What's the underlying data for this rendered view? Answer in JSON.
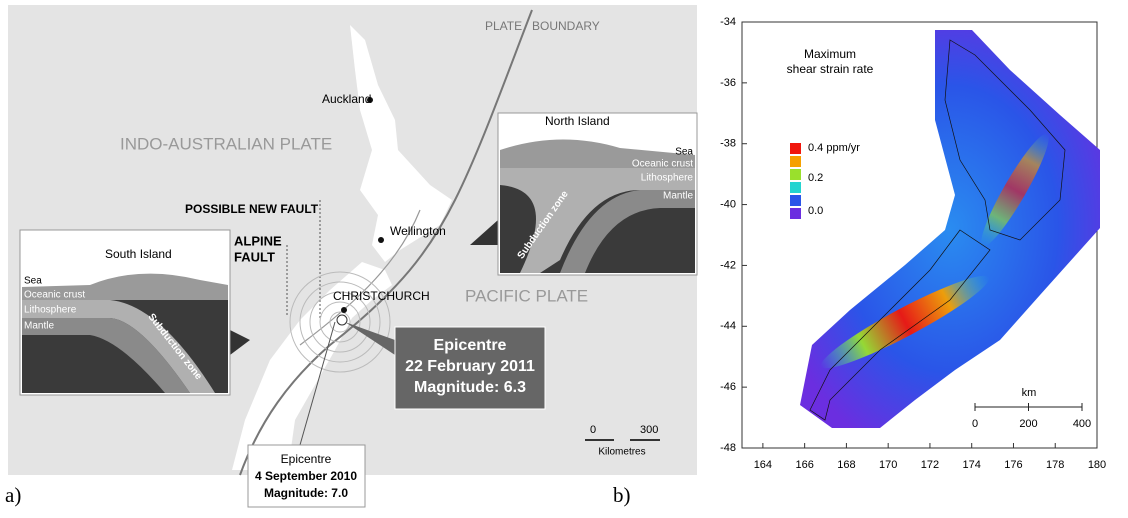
{
  "panel_a": {
    "label": "a)",
    "plate_boundary": [
      "PLATE",
      "BOUNDARY"
    ],
    "plates": [
      "INDO-AUSTRALIAN PLATE",
      "PACIFIC PLATE"
    ],
    "cities": [
      "Auckland",
      "Wellington",
      "CHRISTCHURCH"
    ],
    "possible_fault": "POSSIBLE NEW FAULT",
    "alpine_fault": [
      "ALPINE",
      "FAULT"
    ],
    "north_inset": {
      "title": "North Island",
      "layers": [
        "Sea",
        "Oceanic crust",
        "Lithosphere",
        "Mantle"
      ],
      "zone": "Subduction zone"
    },
    "south_inset": {
      "title": "South Island",
      "layers": [
        "Sea",
        "Oceanic crust",
        "Lithosphere",
        "Mantle"
      ],
      "zone": "Subduction zone"
    },
    "epicentre_2011": [
      "Epicentre",
      "22 February 2011",
      "Magnitude: 6.3"
    ],
    "epicentre_2010": [
      "Epicentre",
      "4 September 2010",
      "Magnitude: 7.0"
    ],
    "scale": {
      "ticks": [
        0,
        300
      ],
      "unit": "Kilometres"
    }
  },
  "panel_b": {
    "label": "b)",
    "title": [
      "Maximum",
      "shear strain rate"
    ],
    "legend": [
      "0.4 ppm/yr",
      "0.2",
      "0.0"
    ],
    "xlim": [
      163,
      180
    ],
    "xticks": [
      164,
      166,
      168,
      170,
      172,
      174,
      176,
      178,
      180
    ],
    "ylim": [
      -48,
      -34
    ],
    "yticks": [
      -34,
      -36,
      -38,
      -40,
      -42,
      -44,
      -46,
      -48
    ],
    "scale_bar": {
      "unit": "km",
      "ticks": [
        0,
        200,
        400
      ]
    }
  }
}
